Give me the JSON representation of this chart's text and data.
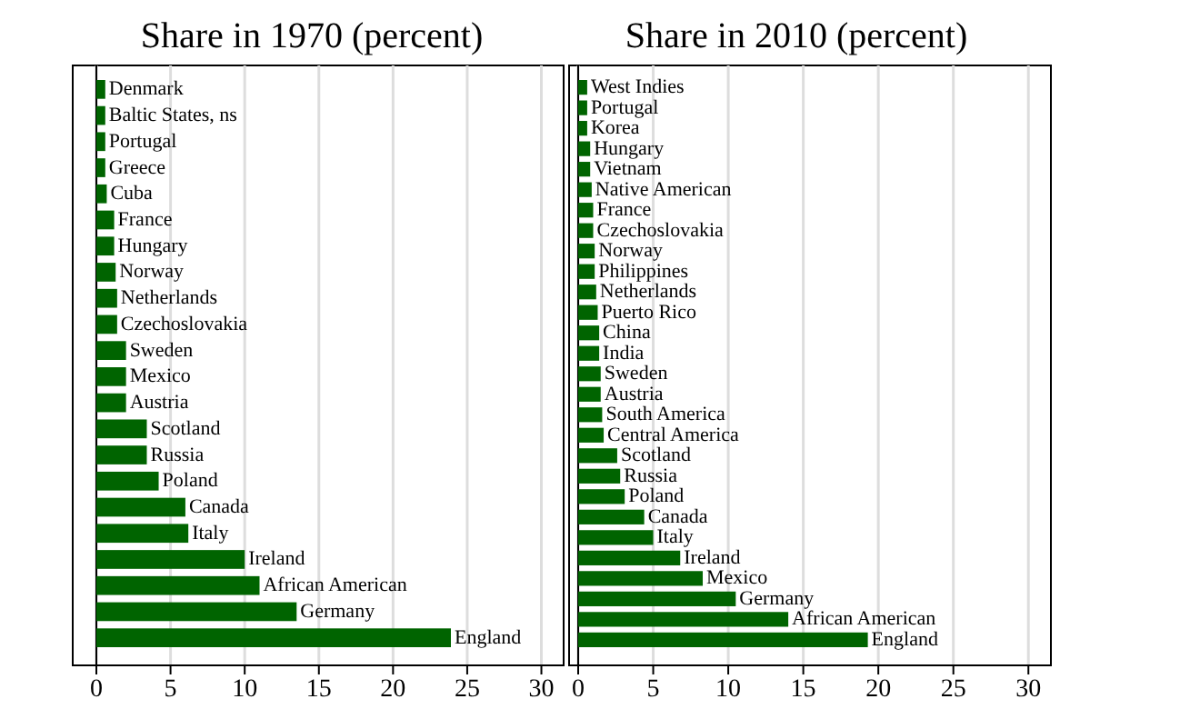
{
  "chart_data": [
    {
      "type": "bar",
      "orientation": "horizontal",
      "title": "Share in 1970 (percent)",
      "categories": [
        "Denmark",
        "Baltic States, ns",
        "Portugal",
        "Greece",
        "Cuba",
        "France",
        "Hungary",
        "Norway",
        "Netherlands",
        "Czechoslovakia",
        "Sweden",
        "Mexico",
        "Austria",
        "Scotland",
        "Russia",
        "Poland",
        "Canada",
        "Italy",
        "Ireland",
        "African American",
        "Germany",
        "England"
      ],
      "values": [
        0.6,
        0.6,
        0.6,
        0.6,
        0.7,
        1.2,
        1.2,
        1.3,
        1.4,
        1.4,
        2.0,
        2.0,
        2.0,
        3.4,
        3.4,
        4.2,
        6.0,
        6.2,
        10.0,
        11.0,
        13.5,
        23.9
      ],
      "color": "#006400",
      "xlim": [
        0,
        31.5
      ],
      "xticks": [
        0,
        5,
        10,
        15,
        20,
        25,
        30
      ],
      "grid": "x"
    },
    {
      "type": "bar",
      "orientation": "horizontal",
      "title": "Share in 2010 (percent)",
      "categories": [
        "West Indies",
        "Portugal",
        "Korea",
        "Hungary",
        "Vietnam",
        "Native American",
        "France",
        "Czechoslovakia",
        "Norway",
        "Philippines",
        "Netherlands",
        "Puerto Rico",
        "China",
        "India",
        "Sweden",
        "Austria",
        "South America",
        "Central America",
        "Scotland",
        "Russia",
        "Poland",
        "Canada",
        "Italy",
        "Ireland",
        "Mexico",
        "Germany",
        "African American",
        "England"
      ],
      "values": [
        0.6,
        0.6,
        0.6,
        0.8,
        0.8,
        0.9,
        1.0,
        1.0,
        1.1,
        1.1,
        1.2,
        1.3,
        1.4,
        1.4,
        1.5,
        1.5,
        1.6,
        1.7,
        2.6,
        2.8,
        3.1,
        4.4,
        5.0,
        6.8,
        8.3,
        10.5,
        14.0,
        19.3
      ],
      "color": "#006400",
      "xlim": [
        0,
        31.5
      ],
      "xticks": [
        0,
        5,
        10,
        15,
        20,
        25,
        30
      ],
      "grid": "x"
    }
  ]
}
